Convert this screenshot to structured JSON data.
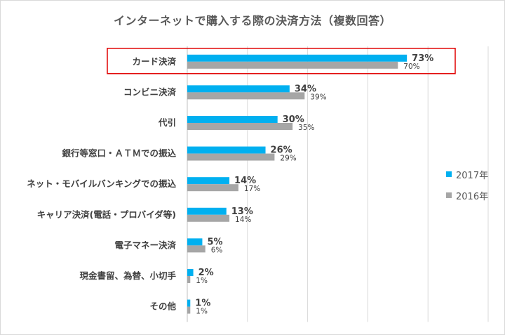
{
  "chart_data": {
    "type": "bar",
    "orientation": "horizontal",
    "title": "インターネットで購入する際の決済方法（複数回答）",
    "categories": [
      "カード決済",
      "コンビニ決済",
      "代引",
      "銀行等窓口・ＡＴＭでの振込",
      "ネット・モバイルバンキングでの振込",
      "キャリア決済(電話・プロバイダ等)",
      "電子マネー決済",
      "現金書留、為替、小切手",
      "その他"
    ],
    "series": [
      {
        "name": "2017年",
        "color": "#00b0f0",
        "values": [
          73,
          34,
          30,
          26,
          14,
          13,
          5,
          2,
          1
        ],
        "labels": [
          "73%",
          "34%",
          "30%",
          "26%",
          "14%",
          "13%",
          "5%",
          "2%",
          "1%"
        ]
      },
      {
        "name": "2016年",
        "color": "#a6a6a6",
        "values": [
          70,
          39,
          35,
          29,
          17,
          14,
          6,
          1,
          1
        ],
        "labels": [
          "70%",
          "39%",
          "35%",
          "29%",
          "17%",
          "14%",
          "6%",
          "1%",
          "1%"
        ]
      }
    ],
    "xlim": [
      0,
      100
    ],
    "grid": true,
    "legend_position": "right",
    "highlight_category": "カード決済",
    "highlight_color": "#e00000"
  }
}
